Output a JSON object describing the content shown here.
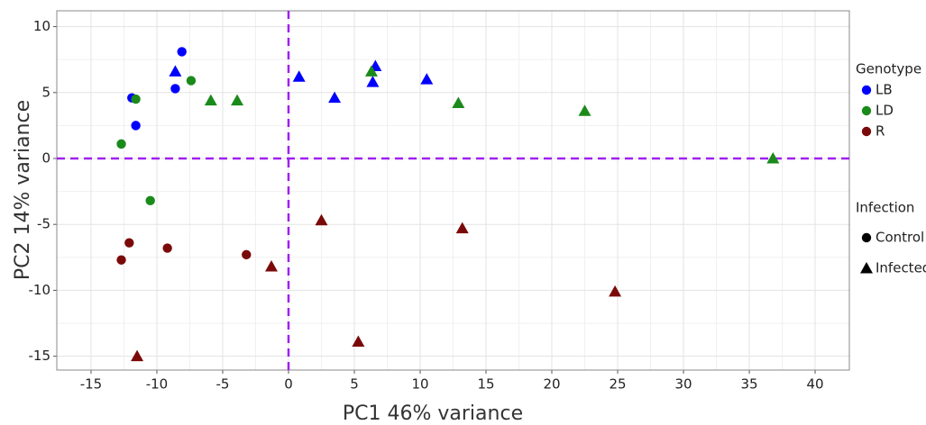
{
  "chart_data": {
    "type": "scatter",
    "x_label": "PC1 46% variance",
    "y_label": "PC2 14% variance",
    "xlim": [
      -17.6,
      42.6
    ],
    "ylim": [
      -16.05,
      11.2
    ],
    "xticks": [
      -15,
      -10,
      -5,
      0,
      5,
      10,
      15,
      20,
      25,
      30,
      35,
      40
    ],
    "yticks": [
      -15,
      -10,
      -5,
      0,
      5,
      10
    ],
    "grid": true,
    "hlines": [
      0
    ],
    "vlines": [
      0
    ],
    "reference_line_color": "#a020f0",
    "legends": [
      {
        "title": "Genotype",
        "entries": [
          {
            "label": "LB",
            "color": "#0000ff",
            "shape": "circle"
          },
          {
            "label": "LD",
            "color": "#1a8a1a",
            "shape": "circle"
          },
          {
            "label": "R",
            "color": "#7a0a0a",
            "shape": "circle"
          }
        ]
      },
      {
        "title": "Infection",
        "entries": [
          {
            "label": "Control",
            "color": "#000000",
            "shape": "circle"
          },
          {
            "label": "Infected",
            "color": "#000000",
            "shape": "triangle"
          }
        ]
      }
    ],
    "series": [
      {
        "color": "#0000ff",
        "shape": "circle",
        "x": [
          -8.1,
          -11.9,
          -8.6,
          -11.6
        ],
        "values": [
          8.1,
          4.6,
          5.3,
          2.5
        ]
      },
      {
        "color": "#0000ff",
        "shape": "triangle",
        "x": [
          -8.6,
          0.8,
          3.5,
          6.6,
          6.4,
          10.5
        ],
        "values": [
          6.6,
          6.2,
          4.6,
          7.0,
          5.8,
          6.0
        ]
      },
      {
        "color": "#1a8a1a",
        "shape": "circle",
        "x": [
          -7.4,
          -11.6,
          -12.7,
          -10.5
        ],
        "values": [
          5.9,
          4.5,
          1.1,
          -3.2
        ]
      },
      {
        "color": "#1a8a1a",
        "shape": "triangle",
        "x": [
          -5.9,
          -3.9,
          6.3,
          12.9,
          22.5,
          36.8
        ],
        "values": [
          4.4,
          4.4,
          6.6,
          4.2,
          3.6,
          0
        ]
      },
      {
        "color": "#7a0a0a",
        "shape": "circle",
        "x": [
          -12.1,
          -12.7,
          -9.2,
          -3.2
        ],
        "values": [
          -6.4,
          -7.7,
          -6.8,
          -7.3
        ]
      },
      {
        "color": "#7a0a0a",
        "shape": "triangle",
        "x": [
          -11.5,
          -1.3,
          2.5,
          5.3,
          13.2,
          24.8
        ],
        "values": [
          -15.0,
          -8.2,
          -4.7,
          -13.9,
          -5.3,
          -10.1
        ]
      }
    ]
  }
}
